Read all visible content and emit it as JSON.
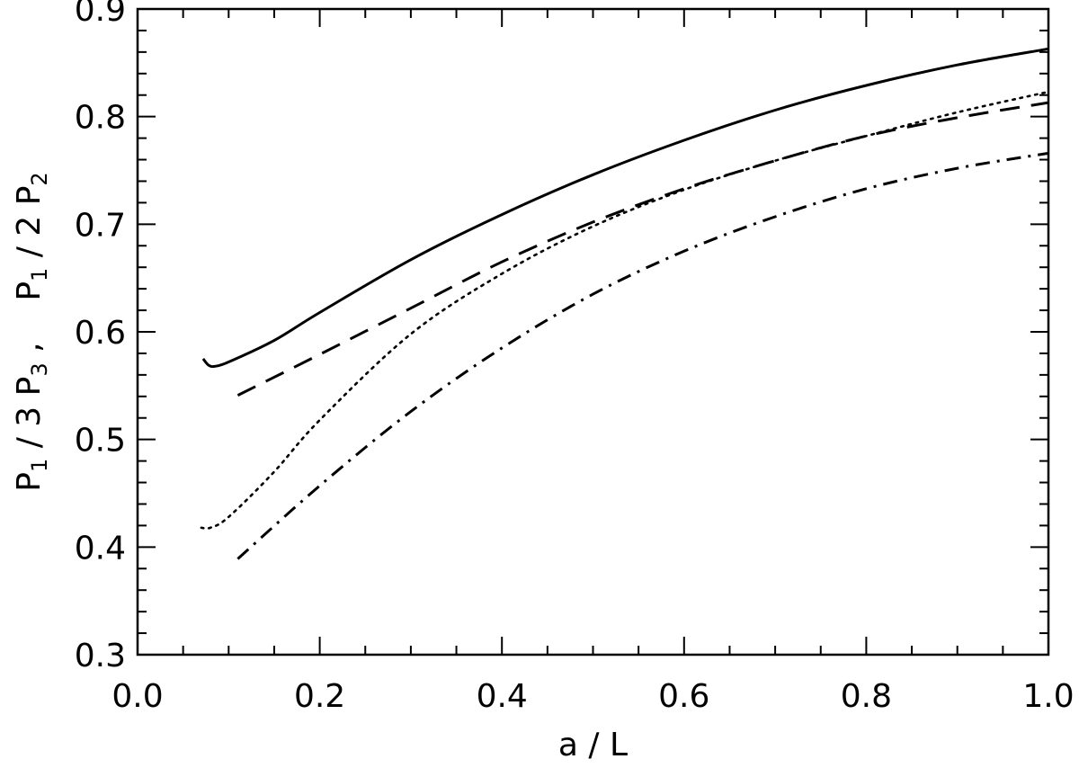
{
  "chart_data": {
    "type": "line",
    "xlabel": "a / L",
    "ylabel": {
      "part1": {
        "sym": "P",
        "sub": "1",
        "mid": " / 3 ",
        "sym2": "P",
        "sub2": "3",
        "tail": " ,"
      },
      "part2": {
        "sym": "P",
        "sub": "1",
        "mid": " / 2 ",
        "sym2": "P",
        "sub2": "2"
      }
    },
    "xlim": [
      0.0,
      1.0
    ],
    "ylim": [
      0.3,
      0.9
    ],
    "x_ticks": [
      "0.0",
      "0.2",
      "0.4",
      "0.6",
      "0.8",
      "1.0"
    ],
    "y_ticks": [
      "0.3",
      "0.4",
      "0.5",
      "0.6",
      "0.7",
      "0.8",
      "0.9"
    ],
    "grid": false,
    "series": [
      {
        "style": "solid",
        "points": [
          [
            0.072,
            0.575
          ],
          [
            0.078,
            0.569
          ],
          [
            0.085,
            0.568
          ],
          [
            0.1,
            0.572
          ],
          [
            0.15,
            0.592
          ],
          [
            0.2,
            0.618
          ],
          [
            0.3,
            0.667
          ],
          [
            0.4,
            0.709
          ],
          [
            0.5,
            0.746
          ],
          [
            0.6,
            0.778
          ],
          [
            0.7,
            0.806
          ],
          [
            0.8,
            0.829
          ],
          [
            0.9,
            0.848
          ],
          [
            1.0,
            0.863
          ]
        ]
      },
      {
        "style": "dashed",
        "points": [
          [
            0.11,
            0.541
          ],
          [
            0.2,
            0.579
          ],
          [
            0.3,
            0.622
          ],
          [
            0.4,
            0.665
          ],
          [
            0.5,
            0.702
          ],
          [
            0.6,
            0.733
          ],
          [
            0.7,
            0.759
          ],
          [
            0.8,
            0.782
          ],
          [
            0.9,
            0.799
          ],
          [
            1.0,
            0.813
          ]
        ]
      },
      {
        "style": "dotted",
        "points": [
          [
            0.07,
            0.418
          ],
          [
            0.08,
            0.418
          ],
          [
            0.1,
            0.428
          ],
          [
            0.15,
            0.47
          ],
          [
            0.2,
            0.518
          ],
          [
            0.3,
            0.598
          ],
          [
            0.4,
            0.654
          ],
          [
            0.5,
            0.698
          ],
          [
            0.6,
            0.732
          ],
          [
            0.7,
            0.759
          ],
          [
            0.8,
            0.782
          ],
          [
            0.9,
            0.804
          ],
          [
            1.0,
            0.823
          ]
        ]
      },
      {
        "style": "dashdot",
        "points": [
          [
            0.11,
            0.389
          ],
          [
            0.2,
            0.457
          ],
          [
            0.3,
            0.526
          ],
          [
            0.4,
            0.585
          ],
          [
            0.5,
            0.635
          ],
          [
            0.6,
            0.675
          ],
          [
            0.7,
            0.707
          ],
          [
            0.8,
            0.733
          ],
          [
            0.9,
            0.752
          ],
          [
            1.0,
            0.766
          ]
        ]
      }
    ]
  }
}
